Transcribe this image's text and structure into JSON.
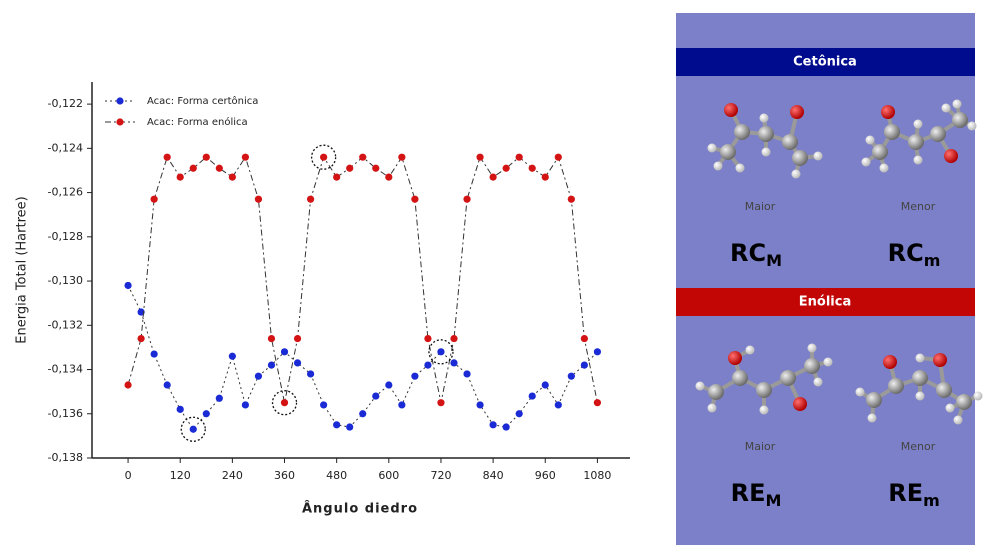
{
  "chart_data": {
    "type": "line",
    "xlabel": "Ângulo diedro",
    "ylabel": "Energia Total (Hartree)",
    "x": [
      0,
      30,
      60,
      90,
      120,
      150,
      180,
      210,
      240,
      270,
      300,
      330,
      360,
      390,
      420,
      450,
      480,
      510,
      540,
      570,
      600,
      630,
      660,
      690,
      720,
      750,
      780,
      810,
      840,
      870,
      900,
      930,
      960,
      990,
      1020,
      1050,
      1080
    ],
    "series": [
      {
        "name": "Acac: Forma certônica",
        "color": "#1a2bd6",
        "line_color": "#333333",
        "dash": "2,3",
        "values": [
          -0.1302,
          -0.1314,
          -0.1333,
          -0.1347,
          -0.1358,
          -0.1367,
          -0.136,
          -0.1353,
          -0.1334,
          -0.1356,
          -0.1343,
          -0.1338,
          -0.1332,
          -0.1337,
          -0.1342,
          -0.1356,
          -0.1365,
          -0.1366,
          -0.136,
          -0.1352,
          -0.1347,
          -0.1356,
          -0.1343,
          -0.1338,
          -0.1332,
          -0.1337,
          -0.1342,
          -0.1356,
          -0.1365,
          -0.1366,
          -0.136,
          -0.1352,
          -0.1347,
          -0.1356,
          -0.1343,
          -0.1338,
          -0.1332
        ]
      },
      {
        "name": "Acac: Forma enólica",
        "color": "#d41414",
        "line_color": "#333333",
        "dash": "6,3,2,3",
        "values": [
          -0.1347,
          -0.1326,
          -0.1263,
          -0.1244,
          -0.1253,
          -0.1249,
          -0.1244,
          -0.1249,
          -0.1253,
          -0.1244,
          -0.1263,
          -0.1326,
          -0.1355,
          -0.1326,
          -0.1263,
          -0.1244,
          -0.1253,
          -0.1249,
          -0.1244,
          -0.1249,
          -0.1253,
          -0.1244,
          -0.1263,
          -0.1326,
          -0.1355,
          -0.1326,
          -0.1263,
          -0.1244,
          -0.1253,
          -0.1249,
          -0.1244,
          -0.1249,
          -0.1253,
          -0.1244,
          -0.1263,
          -0.1326,
          -0.1355
        ]
      }
    ],
    "xlim": [
      -83,
      1155
    ],
    "xticks": [
      0,
      120,
      240,
      360,
      480,
      600,
      720,
      840,
      960,
      1080
    ],
    "ylim": [
      -0.138,
      -0.121
    ],
    "yticks": [
      {
        "value": -0.138,
        "label": "-0,138"
      },
      {
        "value": -0.136,
        "label": "-0,136"
      },
      {
        "value": -0.134,
        "label": "-0,134"
      },
      {
        "value": -0.132,
        "label": "-0,132"
      },
      {
        "value": -0.13,
        "label": "-0,130"
      },
      {
        "value": -0.128,
        "label": "-0,128"
      },
      {
        "value": -0.126,
        "label": "-0,126"
      },
      {
        "value": -0.124,
        "label": "-0,124"
      },
      {
        "value": -0.122,
        "label": "-0,122"
      }
    ],
    "legend": "upper left",
    "grid": false
  },
  "panel": {
    "sections": [
      {
        "title": "Cetônica",
        "color": "#000c8e",
        "items": [
          {
            "caption": "Maior",
            "label": {
              "main": "RC",
              "sub": "M"
            }
          },
          {
            "caption": "Menor",
            "label": {
              "main": "RC",
              "sub": "m"
            }
          }
        ]
      },
      {
        "title": "Enólica",
        "color": "#c20606",
        "items": [
          {
            "caption": "Maior",
            "label": {
              "main": "RE",
              "sub": "M"
            }
          },
          {
            "caption": "Menor",
            "label": {
              "main": "RE",
              "sub": "m"
            }
          }
        ]
      }
    ]
  }
}
